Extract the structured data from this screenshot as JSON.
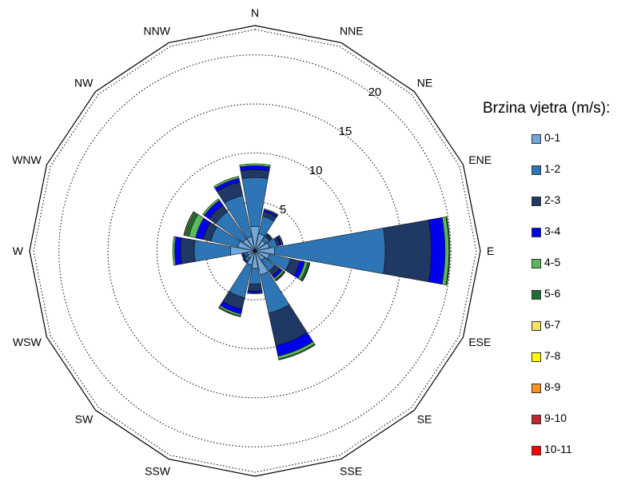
{
  "chart_data": {
    "type": "wind-rose",
    "directions": [
      "N",
      "NNE",
      "NE",
      "ENE",
      "E",
      "ESE",
      "SE",
      "SSE",
      "S",
      "SSW",
      "SW",
      "WSW",
      "W",
      "WNW",
      "NW",
      "NNW"
    ],
    "radial_ticks": [
      5,
      10,
      15,
      20
    ],
    "rmax": 23,
    "grid": "dotted circles",
    "legend": {
      "title": "Brzina vjetra (m/s):",
      "position": "right",
      "classes": [
        {
          "label": "0-1",
          "color": "#6fa8dc"
        },
        {
          "label": "1-2",
          "color": "#2e75b6"
        },
        {
          "label": "2-3",
          "color": "#1f3864"
        },
        {
          "label": "3-4",
          "color": "#0000ee"
        },
        {
          "label": "4-5",
          "color": "#5cb85c"
        },
        {
          "label": "5-6",
          "color": "#1e6b33"
        },
        {
          "label": "6-7",
          "color": "#f2e45f"
        },
        {
          "label": "7-8",
          "color": "#ffff00"
        },
        {
          "label": "8-9",
          "color": "#f79420"
        },
        {
          "label": "9-10",
          "color": "#c0272d"
        },
        {
          "label": "10-11",
          "color": "#ff0000"
        }
      ]
    },
    "series_by_direction": [
      {
        "dir": "N",
        "values": [
          2.5,
          5.0,
          0.8,
          0.4,
          0.2,
          0,
          0,
          0,
          0,
          0,
          0
        ]
      },
      {
        "dir": "NNE",
        "values": [
          1.8,
          1.8,
          0.5,
          0.2,
          0.1,
          0,
          0,
          0,
          0,
          0,
          0
        ]
      },
      {
        "dir": "NE",
        "values": [
          1.3,
          0.5,
          0.2,
          0.1,
          0.1,
          0,
          0,
          0,
          0,
          0,
          0
        ]
      },
      {
        "dir": "ENE",
        "values": [
          1.5,
          0.8,
          0.3,
          0.2,
          0.1,
          0.05,
          0,
          0,
          0,
          0,
          0
        ]
      },
      {
        "dir": "E",
        "values": [
          2.0,
          11.3,
          4.7,
          1.4,
          0.4,
          0.1,
          0,
          0,
          0,
          0,
          0
        ]
      },
      {
        "dir": "ESE",
        "values": [
          1.5,
          2.2,
          1.0,
          0.5,
          0.3,
          0.2,
          0.05,
          0,
          0,
          0,
          0
        ]
      },
      {
        "dir": "SE",
        "values": [
          1.2,
          1.3,
          0.6,
          0.3,
          0.2,
          0.1,
          0.05,
          0,
          0,
          0,
          0
        ]
      },
      {
        "dir": "SSE",
        "values": [
          2.5,
          4.0,
          3.4,
          1.1,
          0.3,
          0.1,
          0,
          0,
          0,
          0,
          0
        ]
      },
      {
        "dir": "S",
        "values": [
          1.8,
          1.6,
          0.7,
          0.2,
          0.1,
          0,
          0,
          0,
          0,
          0,
          0
        ]
      },
      {
        "dir": "SSW",
        "values": [
          1.5,
          3.4,
          1.2,
          0.5,
          0.2,
          0.1,
          0,
          0,
          0,
          0,
          0
        ]
      },
      {
        "dir": "SW",
        "values": [
          0.9,
          0.4,
          0.1,
          0.1,
          0,
          0,
          0,
          0,
          0,
          0,
          0
        ]
      },
      {
        "dir": "WSW",
        "values": [
          0.8,
          0.3,
          0.2,
          0.1,
          0,
          0,
          0,
          0,
          0,
          0,
          0
        ]
      },
      {
        "dir": "W",
        "values": [
          2.5,
          3.7,
          1.4,
          0.6,
          0.2,
          0,
          0,
          0,
          0,
          0,
          0
        ]
      },
      {
        "dir": "WNW",
        "values": [
          1.8,
          2.8,
          0.8,
          0.8,
          0.7,
          0.4,
          0.1,
          0.05,
          0,
          0,
          0
        ]
      },
      {
        "dir": "NW",
        "values": [
          1.5,
          3.4,
          0.8,
          0.6,
          0.2,
          0,
          0,
          0,
          0,
          0,
          0
        ]
      },
      {
        "dir": "NNW",
        "values": [
          1.5,
          4.3,
          1.4,
          0.4,
          0.2,
          0,
          0,
          0,
          0,
          0,
          0
        ]
      }
    ]
  }
}
